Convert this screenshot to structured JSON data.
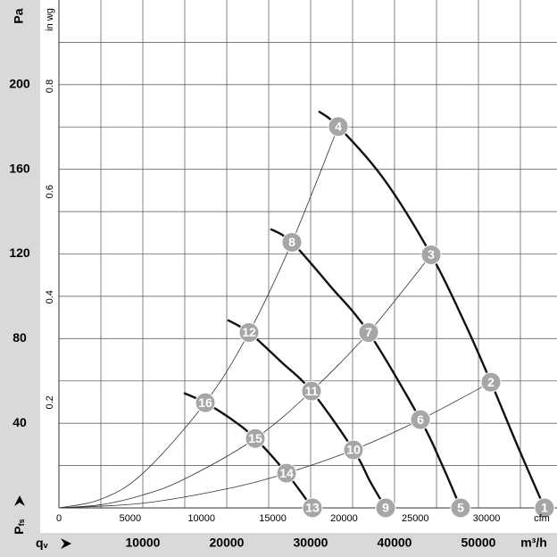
{
  "chart_data": {
    "type": "line",
    "y_unit": "Pa",
    "y2_unit": "in wg",
    "x_unit": "m³/h",
    "x2_unit": "cfm",
    "y_label": "P",
    "y_label_sub": "fs",
    "x_label": "q",
    "x_label_sub": "v",
    "xlim": [
      0,
      59362
    ],
    "xticks": [
      10000,
      20000,
      30000,
      40000,
      50000
    ],
    "x2lim": [
      0,
      34940
    ],
    "x2ticks": [
      0,
      5000,
      10000,
      15000,
      20000,
      25000,
      30000
    ],
    "ylim": [
      0,
      240
    ],
    "yticks": [
      40,
      80,
      120,
      160,
      200
    ],
    "y2lim": [
      0,
      0.9635
    ],
    "y2ticks": [
      0.2,
      0.4,
      0.6,
      0.8
    ],
    "xgrid": [
      5000,
      10000,
      15000,
      20000,
      25000,
      30000,
      35000,
      40000,
      45000,
      50000,
      55000
    ],
    "ygrid": [
      20,
      40,
      60,
      80,
      100,
      120,
      140,
      160,
      180,
      200,
      220
    ],
    "grid": true,
    "series": [
      {
        "color": "#111111",
        "line_width": 2.4,
        "x": [
          30957,
          33298,
          38723,
          44362,
          48298,
          51489,
          54681,
          57872
        ],
        "values": [
          187.4,
          180.2,
          155.4,
          119.6,
          88,
          59.4,
          29.1,
          0
        ]
      },
      {
        "color": "#111111",
        "line_width": 2.4,
        "x": [
          25213,
          27766,
          32340,
          36915,
          43085,
          45638,
          47872
        ],
        "values": [
          131.8,
          125.5,
          104.8,
          82.9,
          41.7,
          20.6,
          0
        ]
      },
      {
        "color": "#111111",
        "line_width": 2.4,
        "x": [
          20106,
          22660,
          26489,
          30106,
          35106,
          37128,
          38936
        ],
        "values": [
          88.8,
          82.9,
          69,
          55.2,
          27.4,
          12.2,
          0
        ]
      },
      {
        "color": "#111111",
        "line_width": 2.4,
        "x": [
          14894,
          17447,
          20638,
          23404,
          27128,
          30213
        ],
        "values": [
          54.3,
          49.7,
          41.7,
          32.8,
          16.4,
          0
        ]
      },
      {
        "color": "#333333",
        "line_width": 0.8,
        "x": [
          0,
          5000,
          10000,
          17447,
          22660,
          27766,
          33298
        ],
        "values": [
          0,
          4.1,
          16.3,
          49.7,
          82.9,
          125.5,
          180.2
        ]
      },
      {
        "color": "#333333",
        "line_width": 0.8,
        "x": [
          0,
          5000,
          10000,
          15000,
          23404,
          30106,
          36915,
          44362
        ],
        "values": [
          0,
          1.5,
          6.1,
          13.7,
          32.8,
          55.2,
          82.9,
          119.6
        ]
      },
      {
        "color": "#333333",
        "line_width": 0.8,
        "x": [
          0,
          10000,
          20000,
          27128,
          35106,
          43085,
          51489
        ],
        "values": [
          0,
          2.2,
          9,
          16.4,
          27.4,
          41.7,
          59.4
        ]
      }
    ],
    "marker_color": "#a6a6a6",
    "points": [
      {
        "label": "1",
        "x": 57872,
        "y": 0
      },
      {
        "label": "2",
        "x": 51489,
        "y": 59.4
      },
      {
        "label": "3",
        "x": 44362,
        "y": 119.6
      },
      {
        "label": "4",
        "x": 33298,
        "y": 180.2
      },
      {
        "label": "5",
        "x": 47872,
        "y": 0
      },
      {
        "label": "6",
        "x": 43085,
        "y": 41.7
      },
      {
        "label": "7",
        "x": 36915,
        "y": 82.9
      },
      {
        "label": "8",
        "x": 27766,
        "y": 125.5
      },
      {
        "label": "9",
        "x": 38936,
        "y": 0
      },
      {
        "label": "10",
        "x": 35106,
        "y": 27.4
      },
      {
        "label": "11",
        "x": 30106,
        "y": 55.2
      },
      {
        "label": "12",
        "x": 22660,
        "y": 82.9
      },
      {
        "label": "13",
        "x": 30213,
        "y": 0
      },
      {
        "label": "14",
        "x": 27128,
        "y": 16.4
      },
      {
        "label": "15",
        "x": 23404,
        "y": 32.8
      },
      {
        "label": "16",
        "x": 17447,
        "y": 49.7
      }
    ]
  }
}
